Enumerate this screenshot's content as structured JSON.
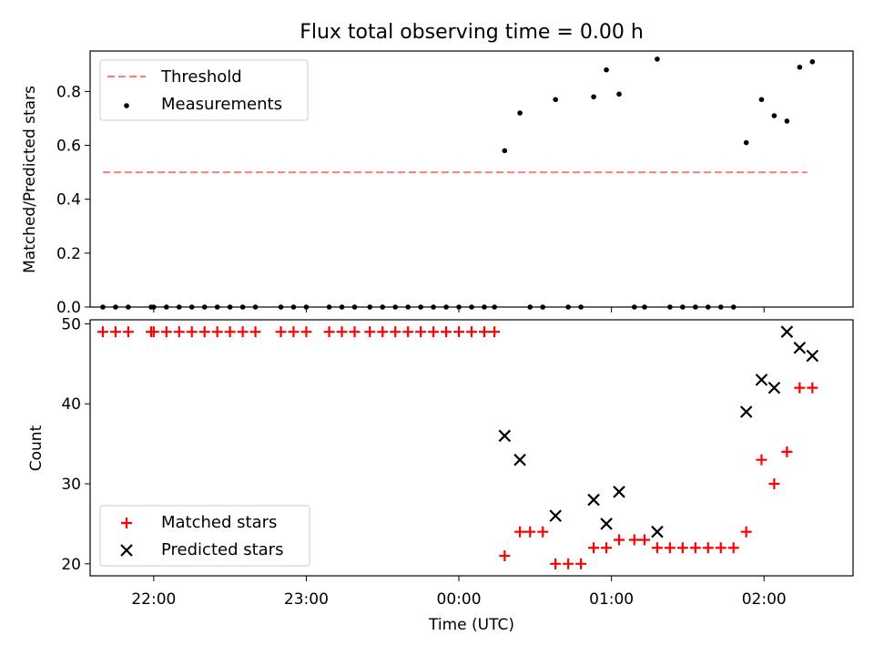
{
  "figure": {
    "title": "Flux total observing time = 0.00 h",
    "xlabel": "Time (UTC)",
    "x_tick_labels": [
      "22:00",
      "23:00",
      "00:00",
      "01:00",
      "02:00"
    ]
  },
  "chart_data": [
    {
      "type": "scatter",
      "title": "Flux total observing time = 0.00 h",
      "xlabel": "",
      "ylabel": "Matched/Predicted stars",
      "xlim": [
        "21:35",
        "02:35"
      ],
      "ylim": [
        0,
        0.95
      ],
      "yticks": [
        0.0,
        0.2,
        0.4,
        0.6,
        0.8
      ],
      "ytick_labels": [
        "0.0",
        "0.2",
        "0.4",
        "0.6",
        "0.8"
      ],
      "legend_position": "top-left",
      "grid": false,
      "threshold": {
        "name": "Threshold",
        "y": 0.5,
        "x_range": [
          "21:40",
          "02:17"
        ],
        "color": "#ff7b7b",
        "style": "dashed"
      },
      "series": [
        {
          "name": "Measurements",
          "color": "#000000",
          "marker": "dot",
          "points": [
            [
              "21:40",
              0.0
            ],
            [
              "21:45",
              0.0
            ],
            [
              "21:50",
              0.0
            ],
            [
              "21:59",
              0.0
            ],
            [
              "22:00",
              0.0
            ],
            [
              "22:05",
              0.0
            ],
            [
              "22:10",
              0.0
            ],
            [
              "22:15",
              0.0
            ],
            [
              "22:20",
              0.0
            ],
            [
              "22:25",
              0.0
            ],
            [
              "22:30",
              0.0
            ],
            [
              "22:35",
              0.0
            ],
            [
              "22:40",
              0.0
            ],
            [
              "22:50",
              0.0
            ],
            [
              "22:55",
              0.0
            ],
            [
              "23:00",
              0.0
            ],
            [
              "23:09",
              0.0
            ],
            [
              "23:14",
              0.0
            ],
            [
              "23:19",
              0.0
            ],
            [
              "23:25",
              0.0
            ],
            [
              "23:30",
              0.0
            ],
            [
              "23:35",
              0.0
            ],
            [
              "23:40",
              0.0
            ],
            [
              "23:45",
              0.0
            ],
            [
              "23:50",
              0.0
            ],
            [
              "23:55",
              0.0
            ],
            [
              "00:00",
              0.0
            ],
            [
              "00:05",
              0.0
            ],
            [
              "00:10",
              0.0
            ],
            [
              "00:14",
              0.0
            ],
            [
              "00:18",
              0.58
            ],
            [
              "00:24",
              0.72
            ],
            [
              "00:28",
              0.0
            ],
            [
              "00:33",
              0.0
            ],
            [
              "00:38",
              0.77
            ],
            [
              "00:43",
              0.0
            ],
            [
              "00:48",
              0.0
            ],
            [
              "00:53",
              0.78
            ],
            [
              "00:58",
              0.88
            ],
            [
              "01:03",
              0.79
            ],
            [
              "01:09",
              0.0
            ],
            [
              "01:13",
              0.0
            ],
            [
              "01:18",
              0.92
            ],
            [
              "01:23",
              0.0
            ],
            [
              "01:28",
              0.0
            ],
            [
              "01:33",
              0.0
            ],
            [
              "01:38",
              0.0
            ],
            [
              "01:43",
              0.0
            ],
            [
              "01:48",
              0.0
            ],
            [
              "01:53",
              0.61
            ],
            [
              "01:59",
              0.77
            ],
            [
              "02:04",
              0.71
            ],
            [
              "02:09",
              0.69
            ],
            [
              "02:14",
              0.89
            ],
            [
              "02:19",
              0.91
            ]
          ]
        }
      ]
    },
    {
      "type": "scatter",
      "title": "",
      "xlabel": "Time (UTC)",
      "ylabel": "Count",
      "xlim": [
        "21:35",
        "02:35"
      ],
      "ylim": [
        18.5,
        50.5
      ],
      "yticks": [
        20,
        30,
        40,
        50
      ],
      "ytick_labels": [
        "20",
        "30",
        "40",
        "50"
      ],
      "x_tick_labels": [
        "22:00",
        "23:00",
        "00:00",
        "01:00",
        "02:00"
      ],
      "legend_position": "bottom-left",
      "grid": false,
      "series": [
        {
          "name": "Matched stars",
          "color": "#ff0000",
          "marker": "plus",
          "points": [
            [
              "21:40",
              49
            ],
            [
              "21:45",
              49
            ],
            [
              "21:50",
              49
            ],
            [
              "21:59",
              49
            ],
            [
              "22:00",
              49
            ],
            [
              "22:05",
              49
            ],
            [
              "22:10",
              49
            ],
            [
              "22:15",
              49
            ],
            [
              "22:20",
              49
            ],
            [
              "22:25",
              49
            ],
            [
              "22:30",
              49
            ],
            [
              "22:35",
              49
            ],
            [
              "22:40",
              49
            ],
            [
              "22:50",
              49
            ],
            [
              "22:55",
              49
            ],
            [
              "23:00",
              49
            ],
            [
              "23:09",
              49
            ],
            [
              "23:14",
              49
            ],
            [
              "23:19",
              49
            ],
            [
              "23:25",
              49
            ],
            [
              "23:30",
              49
            ],
            [
              "23:35",
              49
            ],
            [
              "23:40",
              49
            ],
            [
              "23:45",
              49
            ],
            [
              "23:50",
              49
            ],
            [
              "23:55",
              49
            ],
            [
              "00:00",
              49
            ],
            [
              "00:05",
              49
            ],
            [
              "00:10",
              49
            ],
            [
              "00:14",
              49
            ],
            [
              "00:18",
              21
            ],
            [
              "00:24",
              24
            ],
            [
              "00:28",
              24
            ],
            [
              "00:33",
              24
            ],
            [
              "00:38",
              20
            ],
            [
              "00:43",
              20
            ],
            [
              "00:48",
              20
            ],
            [
              "00:53",
              22
            ],
            [
              "00:58",
              22
            ],
            [
              "01:03",
              23
            ],
            [
              "01:09",
              23
            ],
            [
              "01:13",
              23
            ],
            [
              "01:18",
              22
            ],
            [
              "01:23",
              22
            ],
            [
              "01:28",
              22
            ],
            [
              "01:33",
              22
            ],
            [
              "01:38",
              22
            ],
            [
              "01:43",
              22
            ],
            [
              "01:48",
              22
            ],
            [
              "01:53",
              24
            ],
            [
              "01:59",
              33
            ],
            [
              "02:04",
              30
            ],
            [
              "02:09",
              34
            ],
            [
              "02:14",
              42
            ],
            [
              "02:19",
              42
            ]
          ]
        },
        {
          "name": "Predicted stars",
          "color": "#000000",
          "marker": "x",
          "points": [
            [
              "00:18",
              36
            ],
            [
              "00:24",
              33
            ],
            [
              "00:38",
              26
            ],
            [
              "00:53",
              28
            ],
            [
              "00:58",
              25
            ],
            [
              "01:03",
              29
            ],
            [
              "01:18",
              24
            ],
            [
              "01:53",
              39
            ],
            [
              "01:59",
              43
            ],
            [
              "02:04",
              42
            ],
            [
              "02:09",
              49
            ],
            [
              "02:14",
              47
            ],
            [
              "02:19",
              46
            ]
          ]
        }
      ]
    }
  ]
}
